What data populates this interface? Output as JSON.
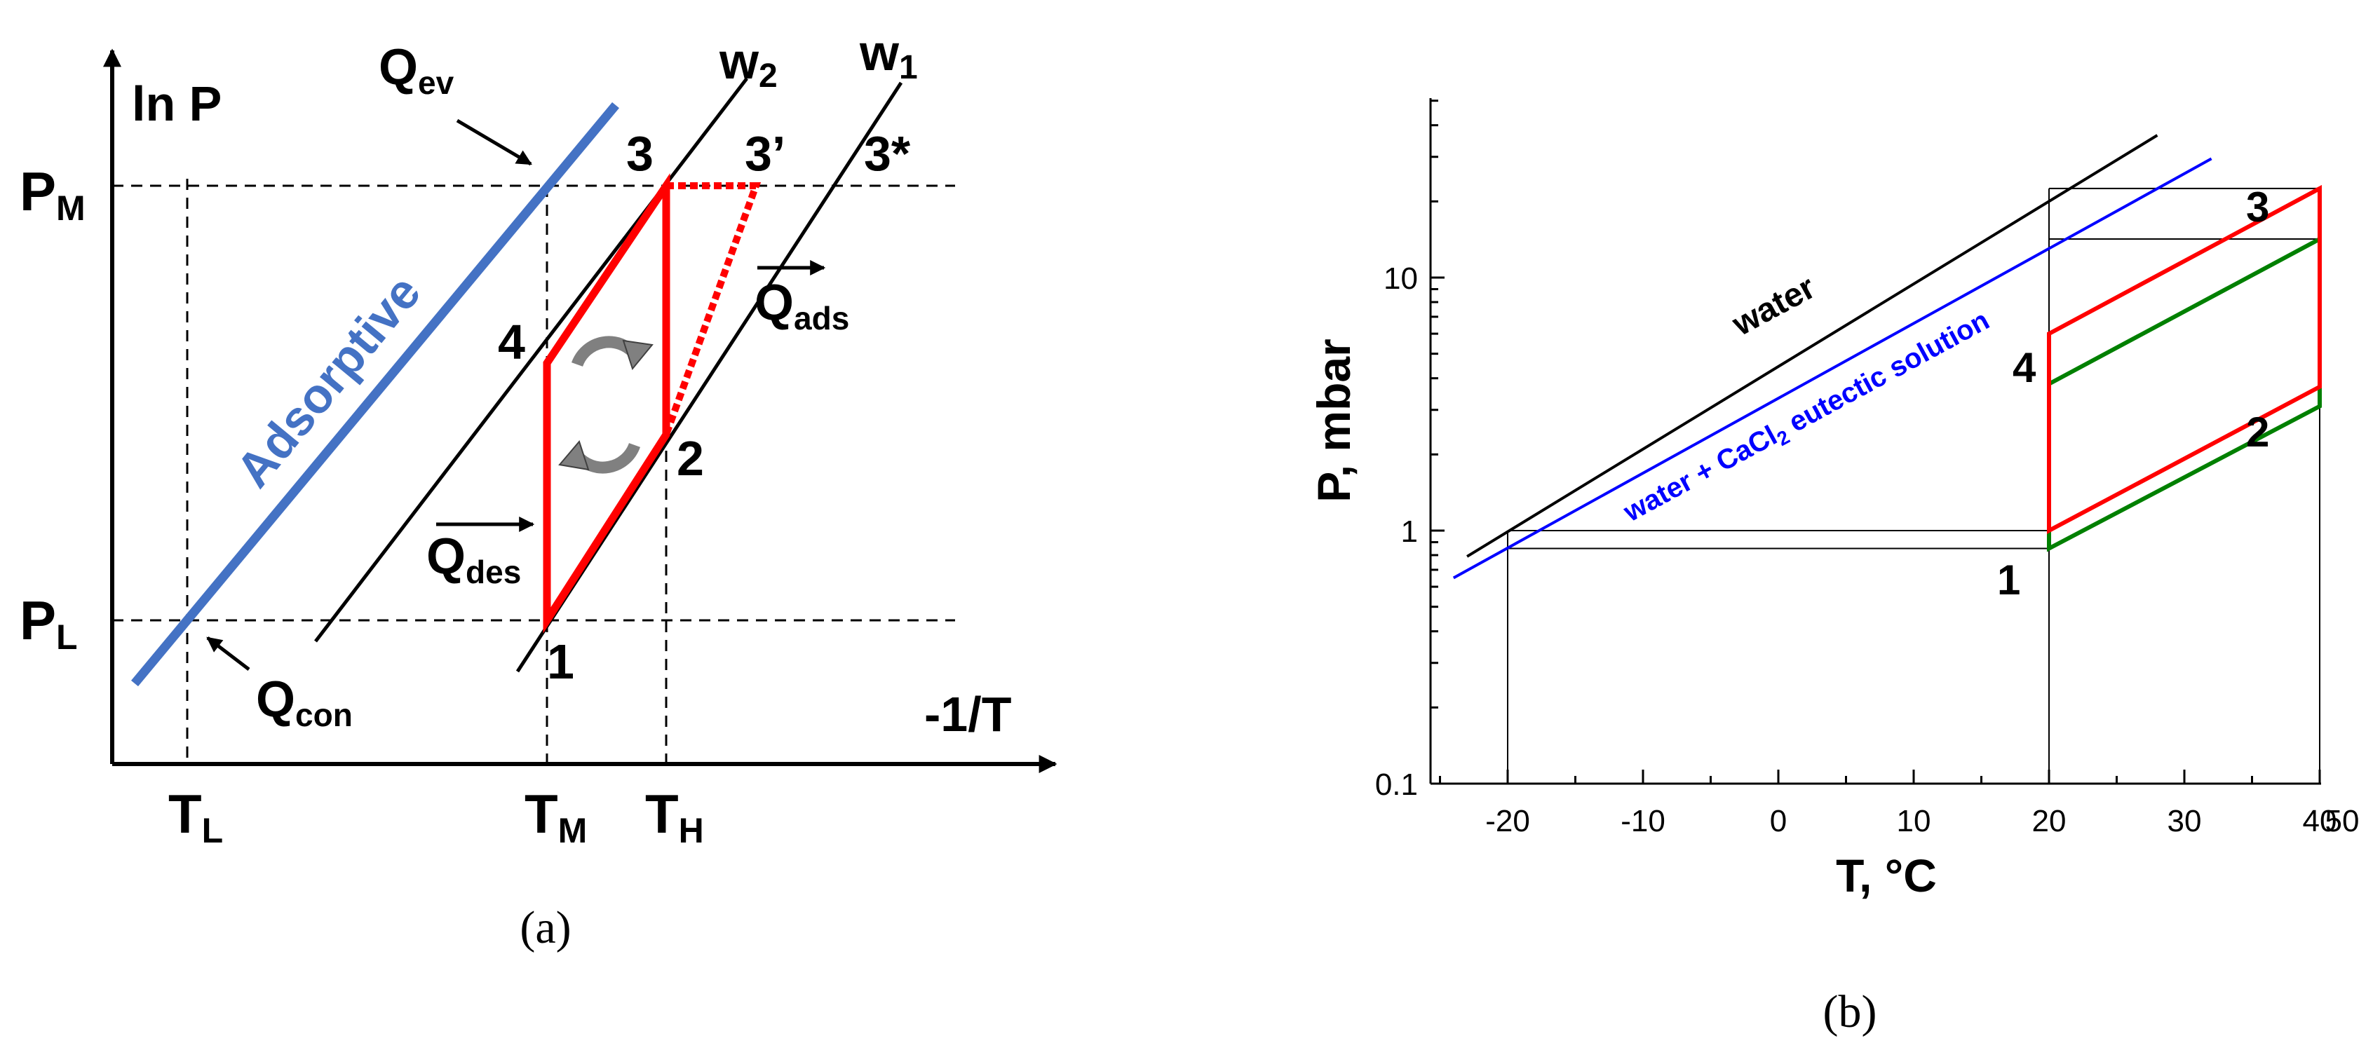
{
  "chart_data": [
    {
      "panel": "a",
      "type": "line",
      "caption": "(a)",
      "ylabel": "ln P",
      "xlabel": "-1/T",
      "y_levels": [
        {
          "id": "PM",
          "main": "P",
          "sub": "M"
        },
        {
          "id": "PL",
          "main": "P",
          "sub": "L"
        }
      ],
      "x_levels": [
        {
          "id": "TL",
          "main": "T",
          "sub": "L"
        },
        {
          "id": "TM",
          "main": "T",
          "sub": "M"
        },
        {
          "id": "TH",
          "main": "T",
          "sub": "H"
        }
      ],
      "lines": [
        {
          "id": "adsorptive",
          "label": "Adsorptive"
        },
        {
          "id": "w2",
          "main": "w",
          "sub": "2"
        },
        {
          "id": "w1",
          "main": "w",
          "sub": "1"
        }
      ],
      "cycle_points": [
        "1",
        "2",
        "3",
        "4"
      ],
      "extra_points": [
        "3’",
        "3*"
      ],
      "heat_labels": [
        {
          "id": "Qev",
          "main": "Q",
          "sub": "ev"
        },
        {
          "id": "Qcon",
          "main": "Q",
          "sub": "con"
        },
        {
          "id": "Qdes",
          "main": "Q",
          "sub": "des"
        },
        {
          "id": "Qads",
          "main": "Q",
          "sub": "ads"
        }
      ]
    },
    {
      "panel": "b",
      "type": "line",
      "caption": "(b)",
      "xlabel": "T, °C",
      "ylabel": "P, mbar",
      "xlim": [
        -26,
        50
      ],
      "ylim_log": [
        0.1,
        50
      ],
      "xticks": [
        "-20",
        "-10",
        "0",
        "10",
        "20",
        "30",
        "40",
        "50"
      ],
      "yticks": [
        "0.1",
        "1",
        "10"
      ],
      "series": [
        {
          "name": "water",
          "color": "#000000",
          "x": [
            -23,
            28
          ],
          "y": [
            0.79,
            36.5
          ]
        },
        {
          "name": "water + CaCl",
          "name_sub": "2",
          "name_tail": " eutectic solution",
          "color": "#0000ff",
          "x": [
            -24,
            32
          ],
          "y": [
            0.65,
            29.5
          ]
        }
      ],
      "cycles": [
        {
          "color": "#ff0000",
          "points": [
            {
              "label": "1",
              "x": 20,
              "y": 1.0
            },
            {
              "label": "2",
              "x": 40,
              "y": 3.7
            },
            {
              "label": "3",
              "x": 40,
              "y": 22.5
            },
            {
              "label": "4",
              "x": 20,
              "y": 6.0
            }
          ]
        },
        {
          "color": "#008000",
          "points": [
            {
              "x": 20,
              "y": 0.85
            },
            {
              "x": 40,
              "y": 3.1
            },
            {
              "x": 40,
              "y": 14.2
            },
            {
              "x": 20,
              "y": 3.8
            }
          ]
        }
      ],
      "point_labels": [
        "1",
        "2",
        "3",
        "4"
      ]
    }
  ]
}
